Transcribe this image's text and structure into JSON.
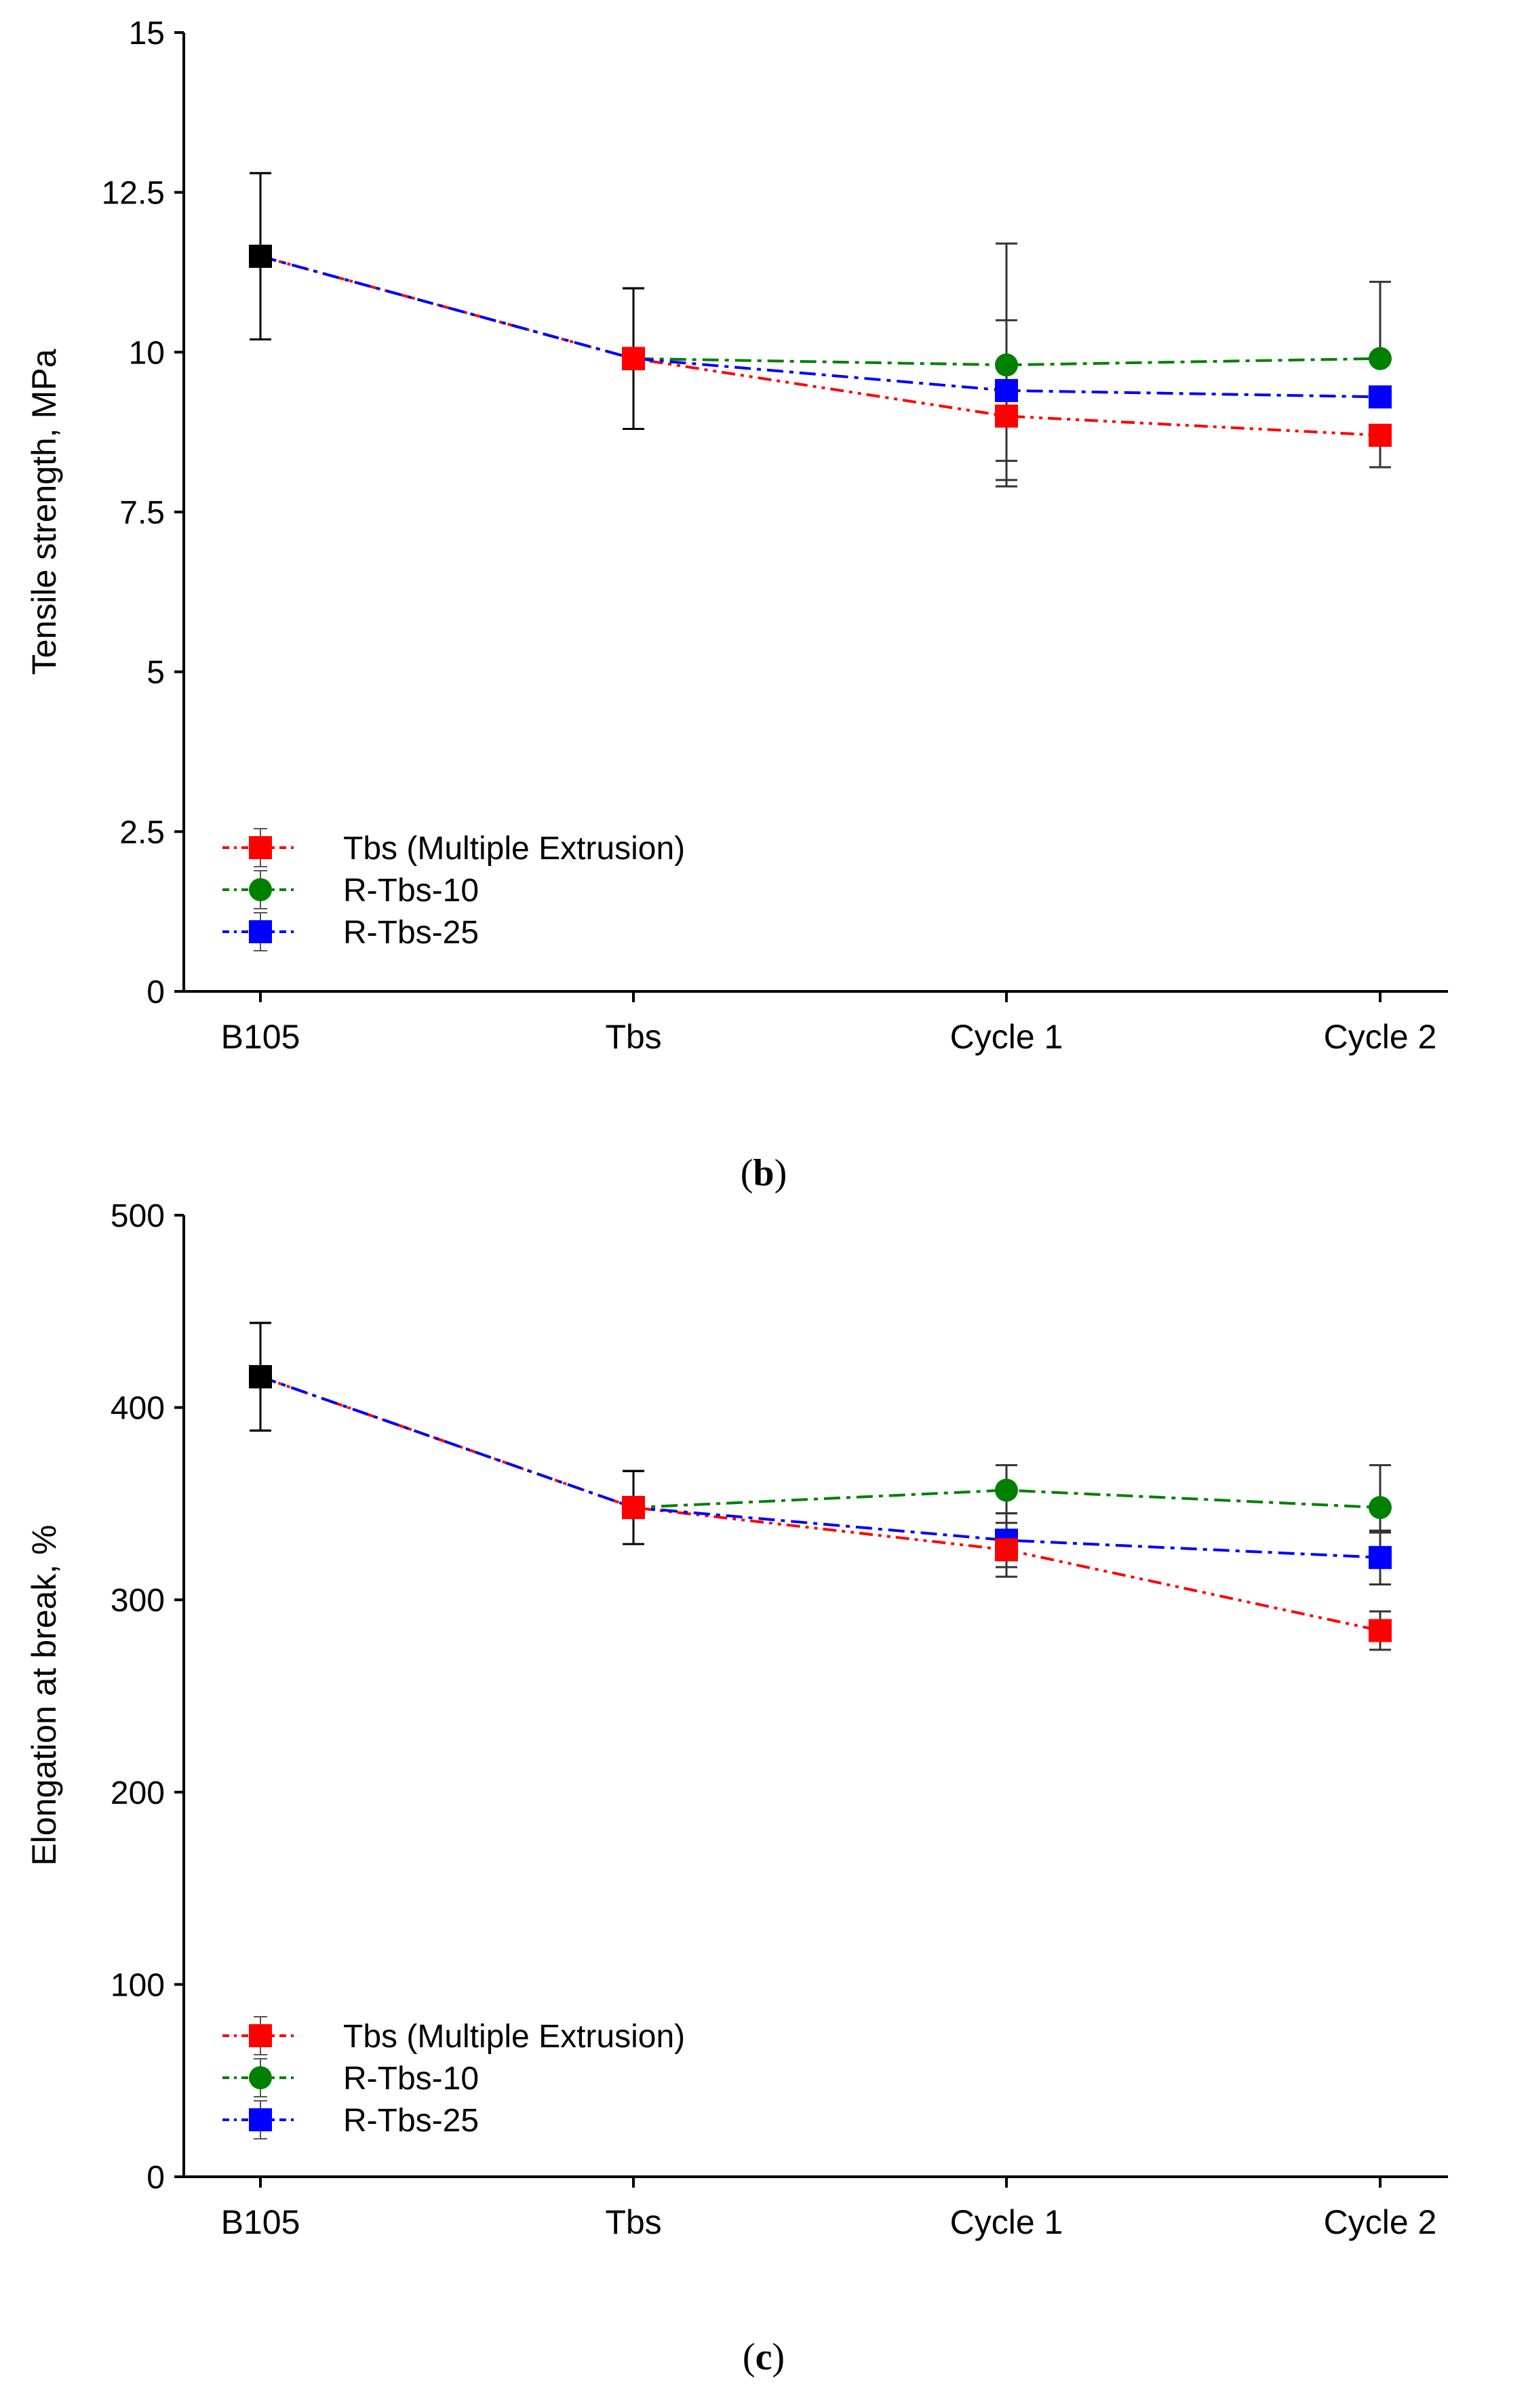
{
  "chart_data": [
    {
      "type": "line",
      "panel_label": "b",
      "categories": [
        "B105",
        "Tbs",
        "Cycle 1",
        "Cycle 2"
      ],
      "ylabel": "Tensile strength, MPa",
      "xlabel": "",
      "ylim": [
        0,
        15
      ],
      "yticks": [
        0,
        2.5,
        5,
        7.5,
        10,
        12.5,
        15
      ],
      "ytick_labels": [
        "0",
        "2.5",
        "5",
        "7.5",
        "10",
        "12.5",
        "15"
      ],
      "legend_position": "bottom-left",
      "series": [
        {
          "name": "Tbs (Multiple Extrusion)",
          "color": "#ff0000",
          "marker": "square",
          "dash": "dash-dot-dot",
          "values": [
            11.5,
            9.9,
            9.0,
            8.7
          ],
          "err_low": [
            10.2,
            8.8,
            7.9,
            8.2
          ],
          "err_high": [
            12.8,
            11.0,
            10.5,
            8.7
          ]
        },
        {
          "name": "R-Tbs-10",
          "color": "#008000",
          "marker": "circle",
          "dash": "dash-dot",
          "values": [
            11.5,
            9.9,
            9.8,
            9.9
          ],
          "err_low": [
            10.2,
            8.8,
            8.3,
            9.9
          ],
          "err_high": [
            12.8,
            11.0,
            11.7,
            11.1
          ]
        },
        {
          "name": "R-Tbs-25",
          "color": "#0000ff",
          "marker": "square",
          "dash": "dash-dot",
          "values": [
            11.5,
            9.9,
            9.4,
            9.3
          ],
          "err_low": [
            10.2,
            8.8,
            8.0,
            9.3
          ],
          "err_high": [
            12.8,
            11.0,
            9.4,
            9.3
          ]
        }
      ]
    },
    {
      "type": "line",
      "panel_label": "c",
      "categories": [
        "B105",
        "Tbs",
        "Cycle 1",
        "Cycle 2"
      ],
      "ylabel": "Elongation at break, %",
      "xlabel": "",
      "ylim": [
        0,
        500
      ],
      "yticks": [
        0,
        100,
        200,
        300,
        400,
        500
      ],
      "ytick_labels": [
        "0",
        "100",
        "200",
        "300",
        "400",
        "500"
      ],
      "legend_position": "bottom-left",
      "series": [
        {
          "name": "Tbs (Multiple Extrusion)",
          "color": "#ff0000",
          "marker": "square",
          "dash": "dash-dot-dot",
          "values": [
            416,
            348,
            326,
            284
          ],
          "err_low": [
            388,
            329,
            312,
            274
          ],
          "err_high": [
            444,
            367,
            340,
            294
          ]
        },
        {
          "name": "R-Tbs-10",
          "color": "#008000",
          "marker": "circle",
          "dash": "dash-dot",
          "values": [
            416,
            348,
            357,
            348
          ],
          "err_low": [
            388,
            329,
            345,
            335
          ],
          "err_high": [
            444,
            367,
            370,
            370
          ]
        },
        {
          "name": "R-Tbs-25",
          "color": "#0000ff",
          "marker": "square",
          "dash": "dash-dot",
          "values": [
            416,
            348,
            331,
            322
          ],
          "err_low": [
            388,
            329,
            317,
            308
          ],
          "err_high": [
            444,
            367,
            345,
            336
          ]
        }
      ]
    }
  ],
  "b105_marker_color": "#000000"
}
